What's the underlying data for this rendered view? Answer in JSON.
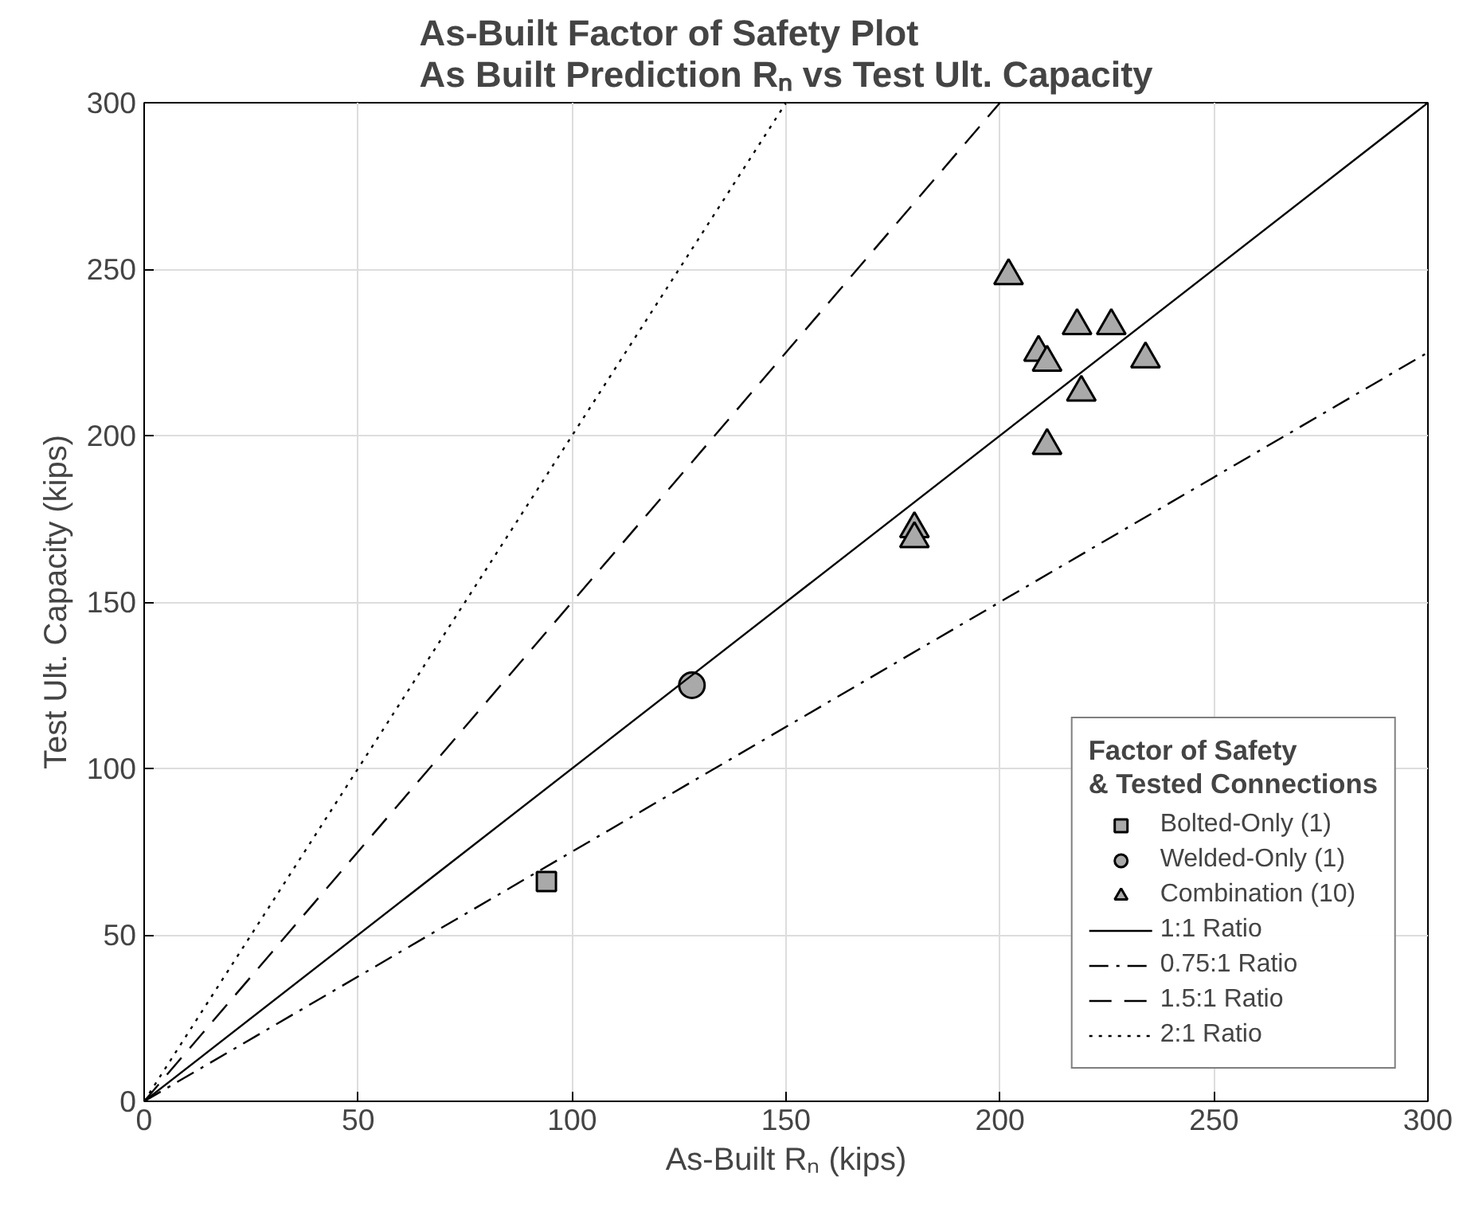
{
  "chart_data": {
    "type": "scatter",
    "title": "As-Built Factor of Safety Plot\nAs Built Prediction Rₙ vs Test Ult. Capacity",
    "xlabel": "As-Built Rₙ (kips)",
    "ylabel": "Test Ult. Capacity (kips)",
    "legend_title": "Factor of Safety\n& Tested Connections",
    "series": [
      {
        "name": "Bolted-Only (1)",
        "marker": "square",
        "color": "#a9a9a9",
        "x": [
          94
        ],
        "values": [
          66
        ]
      },
      {
        "name": "Welded-Only (1)",
        "marker": "circle",
        "color": "#a9a9a9",
        "x": [
          128
        ],
        "values": [
          125
        ]
      },
      {
        "name": "Combination (10)",
        "marker": "triangle",
        "color": "#a9a9a9",
        "x": [
          202,
          209,
          211,
          218,
          226,
          234,
          219,
          211,
          180,
          180
        ],
        "values": [
          248,
          225,
          222,
          233,
          233,
          223,
          213,
          197,
          172,
          169
        ]
      },
      {
        "name": "1:1 Ratio",
        "type": "line",
        "line_style": "solid",
        "color": "#000000",
        "x": [
          0,
          300
        ],
        "values": [
          0,
          300
        ]
      },
      {
        "name": "0.75:1 Ratio",
        "type": "line",
        "line_style": "dashdot",
        "color": "#000000",
        "x": [
          0,
          300
        ],
        "values": [
          0,
          225
        ]
      },
      {
        "name": "1.5:1 Ratio",
        "type": "line",
        "line_style": "dashed",
        "color": "#000000",
        "x": [
          0,
          200
        ],
        "values": [
          0,
          300
        ]
      },
      {
        "name": "2:1 Ratio",
        "type": "line",
        "line_style": "dotted",
        "color": "#000000",
        "x": [
          0,
          150
        ],
        "values": [
          0,
          300
        ]
      }
    ],
    "xlim": [
      0,
      300
    ],
    "ylim": [
      0,
      300
    ],
    "xticks": [
      0,
      50,
      100,
      150,
      200,
      250,
      300
    ],
    "yticks": [
      0,
      50,
      100,
      150,
      200,
      250,
      300
    ],
    "grid": true,
    "legend": "bottom right"
  }
}
